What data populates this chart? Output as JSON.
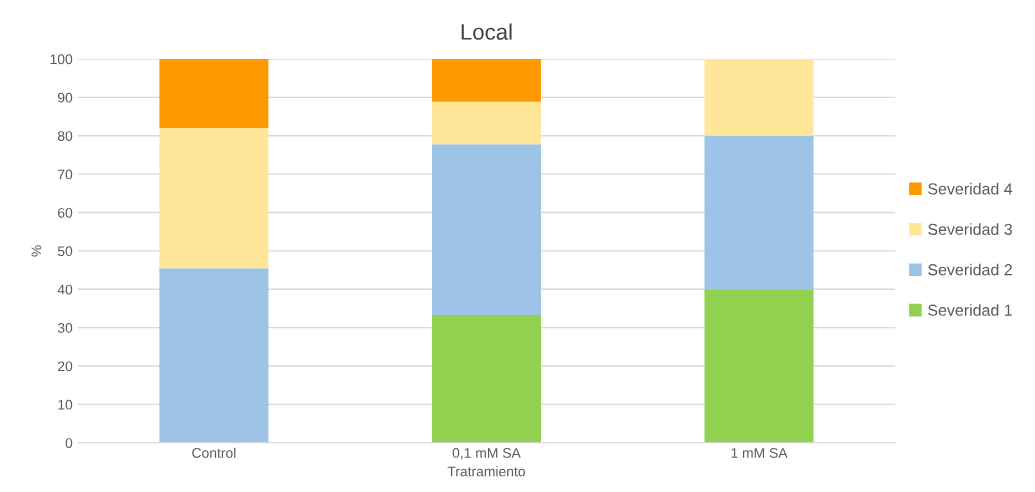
{
  "chart_data": {
    "type": "bar",
    "title": "Local",
    "xlabel": "Tratramiento",
    "ylabel": "%",
    "categories": [
      "Control",
      "0,1 mM SA",
      "1 mM SA"
    ],
    "stacked": true,
    "series": [
      {
        "name": "Severidad 1",
        "color": "#92d050",
        "values": [
          0,
          33.3,
          40
        ]
      },
      {
        "name": "Severidad 2",
        "color": "#9dc3e6",
        "values": [
          45.5,
          44.5,
          40
        ]
      },
      {
        "name": "Severidad 3",
        "color": "#ffe699",
        "values": [
          36.5,
          11.1,
          20
        ]
      },
      {
        "name": "Severidad 4",
        "color": "#ff9900",
        "values": [
          18,
          11.1,
          0
        ]
      }
    ],
    "ylim": [
      0,
      100
    ],
    "yticks": [
      0,
      10,
      20,
      30,
      40,
      50,
      60,
      70,
      80,
      90,
      100
    ],
    "grid": "y",
    "legend": "right"
  }
}
